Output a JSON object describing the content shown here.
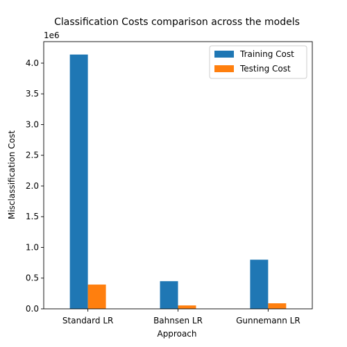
{
  "chart_data": {
    "type": "bar",
    "title": "Classification Costs comparison across the models",
    "xlabel": "Approach",
    "ylabel": "Misclassification Cost",
    "y_multiplier_label": "1e6",
    "categories": [
      "Standard LR",
      "Bahnsen LR",
      "Gunnemann LR"
    ],
    "series": [
      {
        "name": "Training Cost",
        "color": "#1f77b4",
        "values": [
          4140000,
          450000,
          800000
        ]
      },
      {
        "name": "Testing Cost",
        "color": "#ff7f0e",
        "values": [
          395000,
          55000,
          90000
        ]
      }
    ],
    "ylim": [
      0,
      4350000
    ],
    "yticks": [
      0,
      500000,
      1000000,
      1500000,
      2000000,
      2500000,
      3000000,
      3500000,
      4000000
    ],
    "ytick_labels": [
      "0.0",
      "0.5",
      "1.0",
      "1.5",
      "2.0",
      "2.5",
      "3.0",
      "3.5",
      "4.0"
    ],
    "grid": false,
    "legend_position": "top-right"
  }
}
